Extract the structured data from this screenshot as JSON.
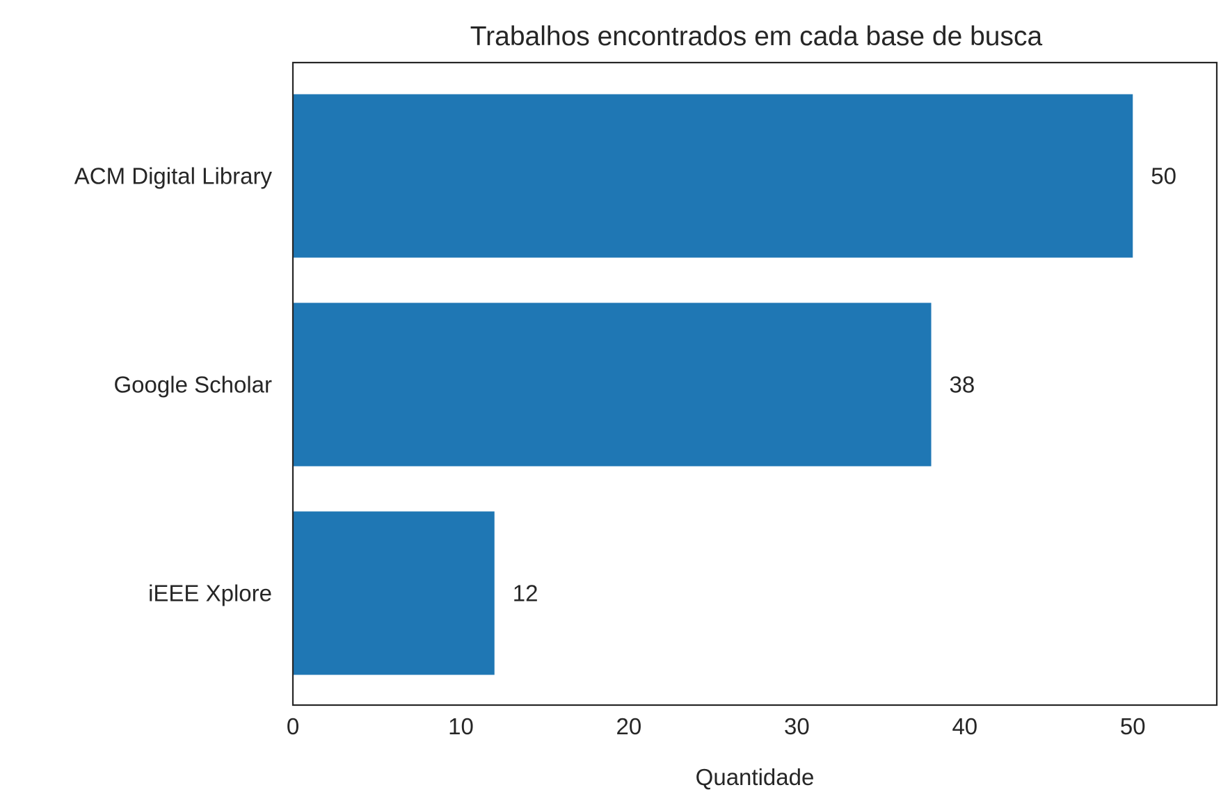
{
  "chart_data": {
    "type": "bar",
    "orientation": "horizontal",
    "title": "Trabalhos encontrados em cada base de busca",
    "xlabel": "Quantidade",
    "ylabel": "",
    "categories": [
      "ACM Digital Library",
      "Google Scholar",
      "iEEE Xplore"
    ],
    "values": [
      50,
      38,
      12
    ],
    "data_labels": [
      "50",
      "38",
      "12"
    ],
    "xlim": [
      0,
      55
    ],
    "xticks": [
      0,
      10,
      20,
      30,
      40,
      50
    ],
    "xtick_labels": [
      "0",
      "10",
      "20",
      "30",
      "40",
      "50"
    ],
    "grid": false,
    "bar_color": "#1f77b4",
    "text_color": "#262626",
    "frame_color": "#262626"
  }
}
